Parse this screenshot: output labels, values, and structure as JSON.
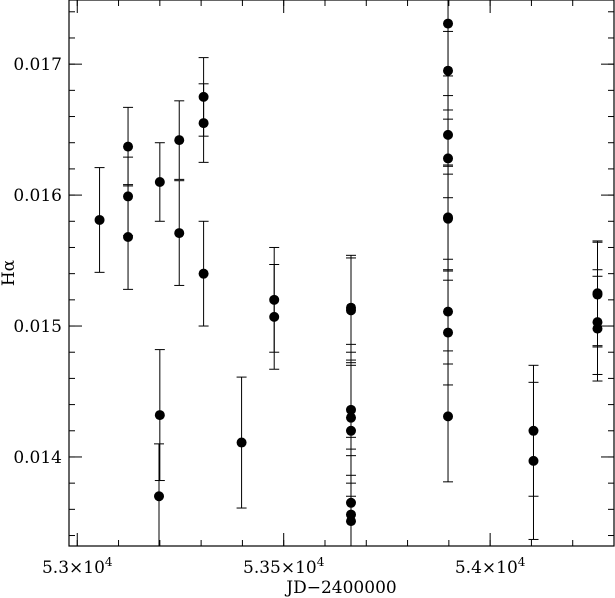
{
  "chart_data": {
    "type": "scatter",
    "xlabel": "JD−2400000",
    "ylabel": "Hα",
    "xlim": [
      52980,
      54300
    ],
    "ylim": [
      0.01332,
      0.01749
    ],
    "x_ticks": [
      {
        "value": 53000,
        "label": "5.3×10",
        "exp": "4"
      },
      {
        "value": 53500,
        "label": "5.35×10",
        "exp": "4"
      },
      {
        "value": 54000,
        "label": "5.4×10",
        "exp": "4"
      }
    ],
    "x_minor_step": 100,
    "y_ticks": [
      {
        "value": 0.014,
        "label": "0.014"
      },
      {
        "value": 0.015,
        "label": "0.015"
      },
      {
        "value": 0.016,
        "label": "0.016"
      },
      {
        "value": 0.017,
        "label": "0.017"
      }
    ],
    "y_minor_step": 0.0002,
    "series": [
      {
        "marker": "filled-circle",
        "color": "#000000",
        "points": [
          {
            "x": 53054,
            "y": 0.01581,
            "err": 0.0004
          },
          {
            "x": 53123,
            "y": 0.01637,
            "err": 0.0003
          },
          {
            "x": 53123,
            "y": 0.01599,
            "err": 0.0003
          },
          {
            "x": 53123,
            "y": 0.01568,
            "err": 0.0004
          },
          {
            "x": 53200,
            "y": 0.0161,
            "err": 0.0003
          },
          {
            "x": 53200,
            "y": 0.01432,
            "err": 0.0005
          },
          {
            "x": 53198,
            "y": 0.0137,
            "err": 0.0004
          },
          {
            "x": 53247,
            "y": 0.01642,
            "err": 0.0003
          },
          {
            "x": 53247,
            "y": 0.01571,
            "err": 0.0004
          },
          {
            "x": 53306,
            "y": 0.01675,
            "err": 0.0003
          },
          {
            "x": 53306,
            "y": 0.01655,
            "err": 0.0003
          },
          {
            "x": 53306,
            "y": 0.0154,
            "err": 0.0004
          },
          {
            "x": 53398,
            "y": 0.01411,
            "err": 0.0005
          },
          {
            "x": 53477,
            "y": 0.0152,
            "err": 0.0004
          },
          {
            "x": 53477,
            "y": 0.01507,
            "err": 0.0004
          },
          {
            "x": 53663,
            "y": 0.01514,
            "err": 0.0004
          },
          {
            "x": 53663,
            "y": 0.01512,
            "err": 0.0004
          },
          {
            "x": 53663,
            "y": 0.01436,
            "err": 0.0005
          },
          {
            "x": 53663,
            "y": 0.0143,
            "err": 0.0005
          },
          {
            "x": 53663,
            "y": 0.0142,
            "err": 0.0005
          },
          {
            "x": 53663,
            "y": 0.01365,
            "err": 0.0005
          },
          {
            "x": 53663,
            "y": 0.01356,
            "err": 0.0005
          },
          {
            "x": 53663,
            "y": 0.01351,
            "err": 0.0005
          },
          {
            "x": 53898,
            "y": 0.01731,
            "err": 0.0004
          },
          {
            "x": 53898,
            "y": 0.01695,
            "err": 0.0003
          },
          {
            "x": 53898,
            "y": 0.01646,
            "err": 0.0003
          },
          {
            "x": 53898,
            "y": 0.01628,
            "err": 0.0003
          },
          {
            "x": 53898,
            "y": 0.01583,
            "err": 0.0004
          },
          {
            "x": 53898,
            "y": 0.01582,
            "err": 0.0004
          },
          {
            "x": 53898,
            "y": 0.01511,
            "err": 0.0004
          },
          {
            "x": 53898,
            "y": 0.01495,
            "err": 0.0004
          },
          {
            "x": 53898,
            "y": 0.01431,
            "err": 0.0005
          },
          {
            "x": 54105,
            "y": 0.0142,
            "err": 0.0005
          },
          {
            "x": 54105,
            "y": 0.01397,
            "err": 0.0006
          },
          {
            "x": 54260,
            "y": 0.01525,
            "err": 0.0004
          },
          {
            "x": 54260,
            "y": 0.01524,
            "err": 0.0004
          },
          {
            "x": 54260,
            "y": 0.01503,
            "err": 0.0004
          },
          {
            "x": 54260,
            "y": 0.01498,
            "err": 0.0004
          }
        ]
      }
    ]
  }
}
